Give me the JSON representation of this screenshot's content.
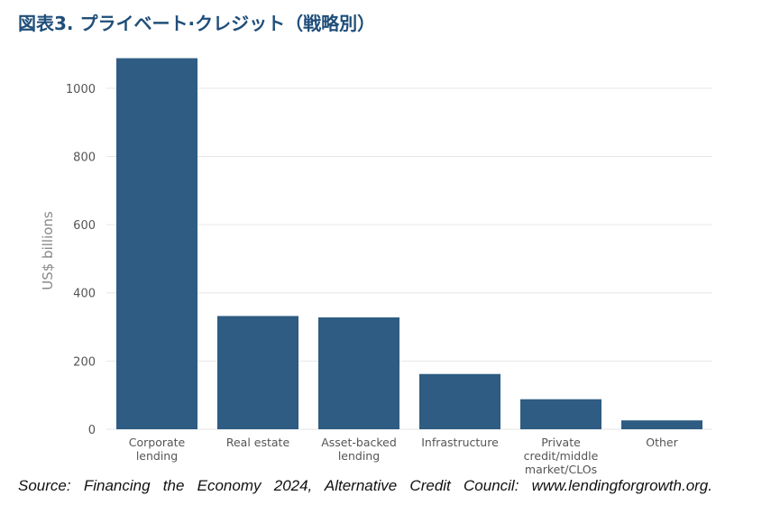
{
  "title": "図表3. プライベート·クレジット（戦略別）",
  "source": "Source: Financing the Economy 2024, Alternative Credit Council: www.lendingforgrowth.org.",
  "colors": {
    "bar": "#2e5c82",
    "grid": "#e6e6e6",
    "axis_text": "#555555",
    "title": "#1f4e79"
  },
  "chart_data": {
    "type": "bar",
    "title": "",
    "xlabel": "",
    "ylabel": "US$ billions",
    "ylim": [
      0,
      1100
    ],
    "yticks": [
      0,
      200,
      400,
      600,
      800,
      1000
    ],
    "grid": true,
    "categories": [
      [
        "Corporate",
        "lending"
      ],
      [
        "Real estate"
      ],
      [
        "Asset-backed",
        "lending"
      ],
      [
        "Infrastructure"
      ],
      [
        "Private",
        "credit/middle",
        "market/CLOs"
      ],
      [
        "Other"
      ]
    ],
    "values": [
      1088,
      332,
      328,
      162,
      88,
      26
    ]
  }
}
